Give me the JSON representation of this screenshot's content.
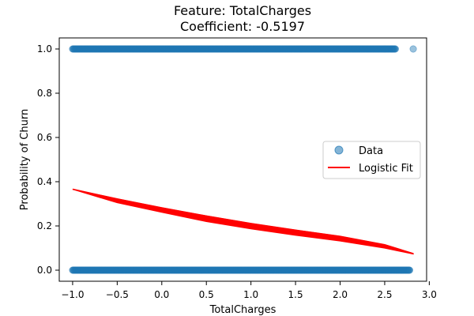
{
  "chart_data": {
    "type": "scatter",
    "title_line1": "Feature: TotalCharges",
    "title_line2": "Coefficient: -0.5197",
    "xlabel": "TotalCharges",
    "ylabel": "Probability of Churn",
    "xlim": [
      -1.15,
      2.97
    ],
    "ylim": [
      -0.05,
      1.05
    ],
    "x_ticks": [
      -1.0,
      -0.5,
      0.0,
      0.5,
      1.0,
      1.5,
      2.0,
      2.5,
      3.0
    ],
    "x_tick_labels": [
      "−1.0",
      "−0.5",
      "0.0",
      "0.5",
      "1.0",
      "1.5",
      "2.0",
      "2.5",
      "3.0"
    ],
    "y_ticks": [
      0.0,
      0.2,
      0.4,
      0.6,
      0.8,
      1.0
    ],
    "y_tick_labels": [
      "0.0",
      "0.2",
      "0.4",
      "0.6",
      "0.8",
      "1.0"
    ],
    "grid": false,
    "legend_position": "right",
    "series": [
      {
        "name": "Data",
        "kind": "scatter",
        "color": "#1f77b4",
        "y_levels": [
          0,
          1
        ],
        "x_range_y1": [
          -1.0,
          2.82
        ],
        "x_range_y0": [
          -1.0,
          2.78
        ]
      },
      {
        "name": "Logistic Fit",
        "kind": "line",
        "color": "#ff0000",
        "x": [
          -1.0,
          -0.5,
          0.0,
          0.5,
          1.0,
          1.5,
          2.0,
          2.5,
          2.82
        ],
        "y_upper": [
          0.366,
          0.322,
          0.282,
          0.245,
          0.211,
          0.181,
          0.153,
          0.115,
          0.075
        ],
        "y_lower": [
          0.366,
          0.305,
          0.262,
          0.22,
          0.187,
          0.158,
          0.132,
          0.1,
          0.073
        ]
      }
    ]
  }
}
